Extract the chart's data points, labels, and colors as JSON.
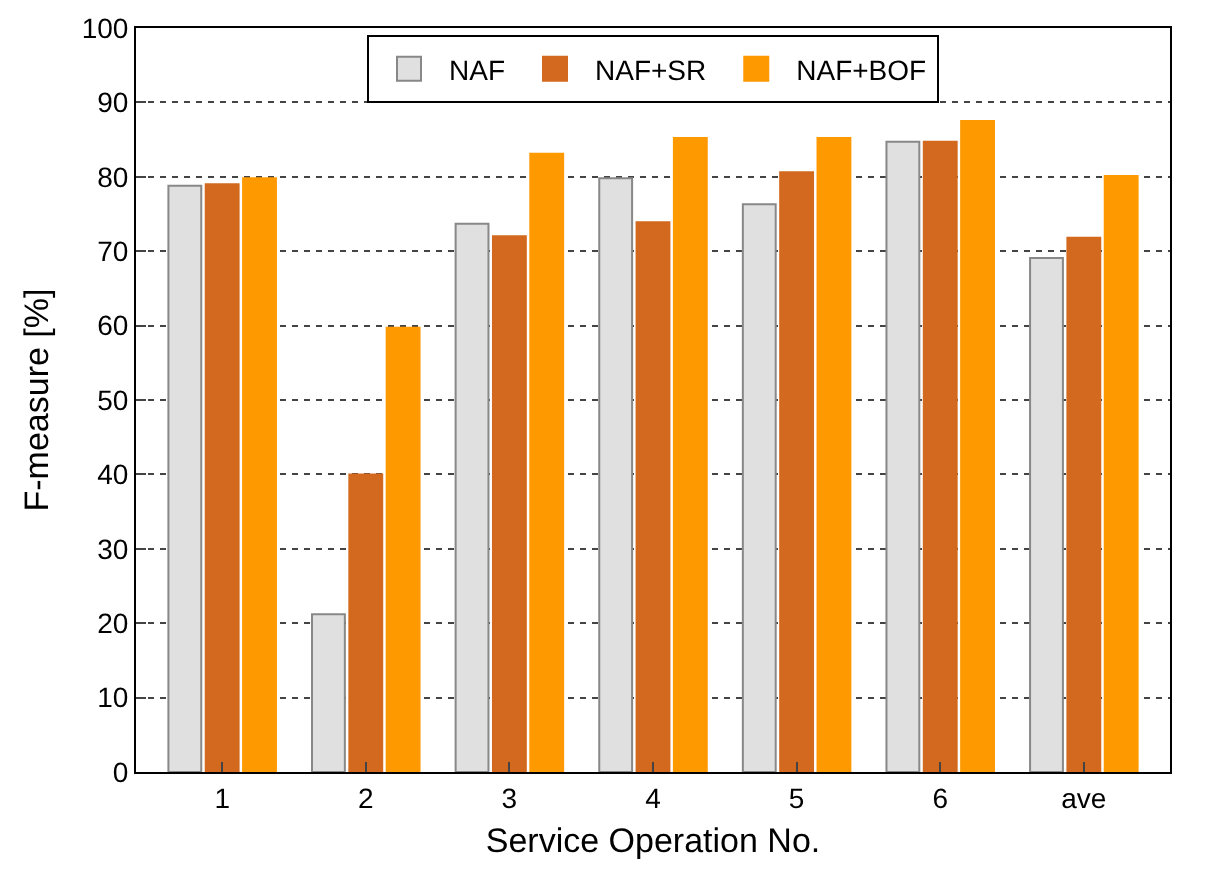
{
  "chart_data": {
    "type": "bar",
    "xlabel": "Service Operation No.",
    "ylabel": "F-measure [%]",
    "categories": [
      "1",
      "2",
      "3",
      "4",
      "5",
      "6",
      "ave"
    ],
    "series": [
      {
        "name": "NAF",
        "color": "#e0e0e0",
        "values": [
          78.8,
          21.2,
          73.7,
          79.8,
          76.3,
          84.7,
          69.1
        ]
      },
      {
        "name": "NAF+SR",
        "color": "#d2691e",
        "values": [
          79.0,
          40.0,
          72.0,
          73.9,
          80.6,
          84.7,
          71.8
        ]
      },
      {
        "name": "NAF+BOF",
        "color": "#ff9900",
        "values": [
          79.8,
          59.7,
          83.1,
          85.2,
          85.2,
          87.5,
          80.1
        ]
      }
    ],
    "ylim": [
      0,
      100
    ],
    "yticks": [
      0,
      10,
      20,
      30,
      40,
      50,
      60,
      70,
      80,
      90,
      100
    ],
    "grid": "y",
    "legend": "top"
  }
}
